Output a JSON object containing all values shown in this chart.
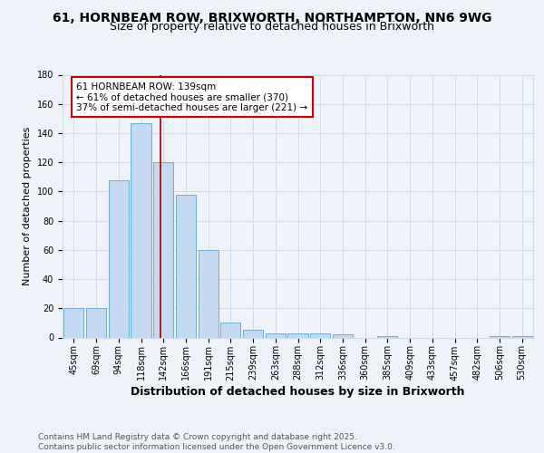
{
  "title_line1": "61, HORNBEAM ROW, BRIXWORTH, NORTHAMPTON, NN6 9WG",
  "title_line2": "Size of property relative to detached houses in Brixworth",
  "xlabel": "Distribution of detached houses by size in Brixworth",
  "ylabel": "Number of detached properties",
  "categories": [
    "45sqm",
    "69sqm",
    "94sqm",
    "118sqm",
    "142sqm",
    "166sqm",
    "191sqm",
    "215sqm",
    "239sqm",
    "263sqm",
    "288sqm",
    "312sqm",
    "336sqm",
    "360sqm",
    "385sqm",
    "409sqm",
    "433sqm",
    "457sqm",
    "482sqm",
    "506sqm",
    "530sqm"
  ],
  "values": [
    20,
    20,
    108,
    147,
    120,
    98,
    60,
    10,
    5,
    3,
    3,
    3,
    2,
    0,
    1,
    0,
    0,
    0,
    0,
    1,
    1
  ],
  "bar_color": "#c5d9f0",
  "bar_edge_color": "#6aaed6",
  "grid_color": "#d0daea",
  "background_color": "#eef2f9",
  "red_line_color": "#990000",
  "annotation_text": "61 HORNBEAM ROW: 139sqm\n← 61% of detached houses are smaller (370)\n37% of semi-detached houses are larger (221) →",
  "annotation_box_color": "#ffffff",
  "annotation_box_edge": "#cc0000",
  "ylim": [
    0,
    180
  ],
  "yticks": [
    0,
    20,
    40,
    60,
    80,
    100,
    120,
    140,
    160,
    180
  ],
  "footer_text": "Contains HM Land Registry data © Crown copyright and database right 2025.\nContains public sector information licensed under the Open Government Licence v3.0.",
  "title_fontsize": 10,
  "subtitle_fontsize": 9,
  "axis_label_fontsize": 8,
  "tick_fontsize": 7,
  "annotation_fontsize": 7.5,
  "footer_fontsize": 6.5
}
